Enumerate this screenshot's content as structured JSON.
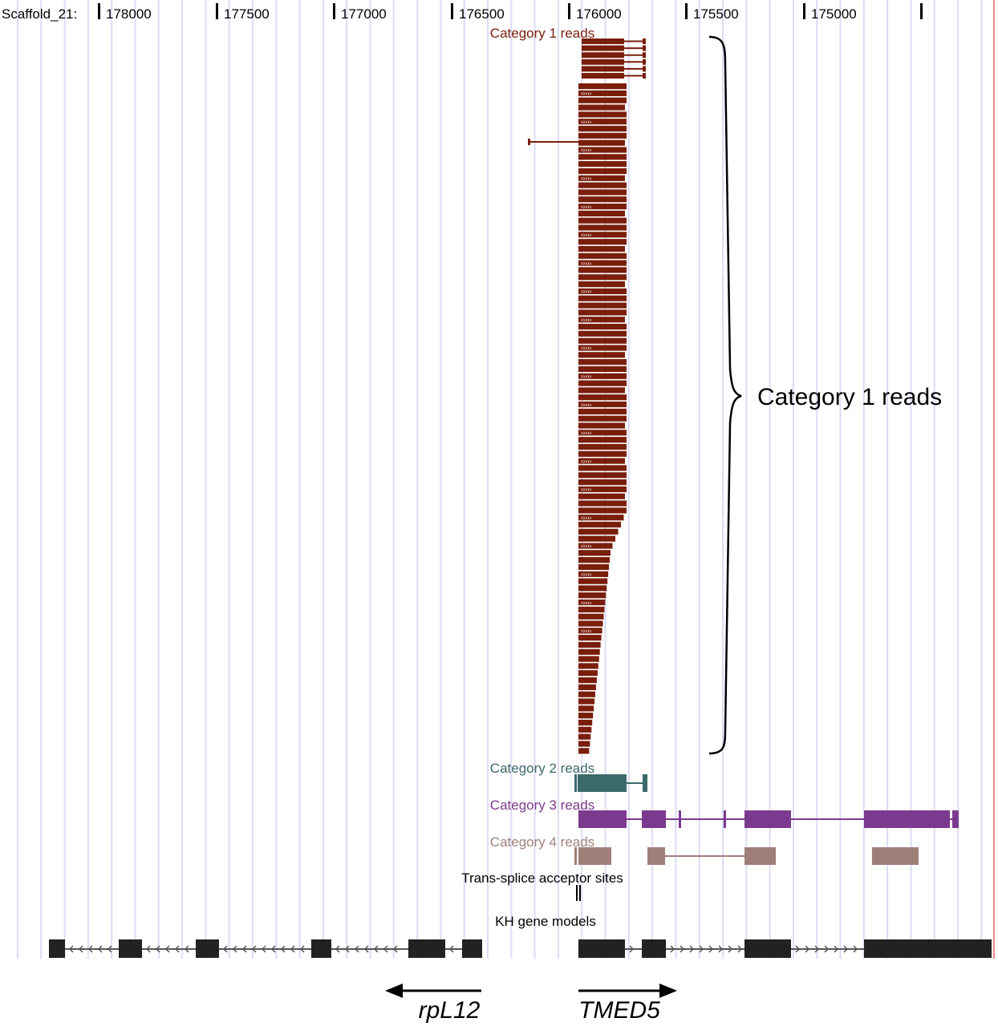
{
  "header": {
    "scaffold_label": "Scaffold_21:",
    "ticks": [
      "178000",
      "177500",
      "177000",
      "176500",
      "176000",
      "175500",
      "175000",
      ""
    ]
  },
  "colors": {
    "category1": "#7a1e0c",
    "category2": "#3b6a6a",
    "category3": "#7b3a8e",
    "category4": "#a07f78",
    "gene_models": "#222222",
    "grid": "#dcdcf5",
    "right_edge": "#f08a8a"
  },
  "tracks": {
    "category1": {
      "label": "Category 1 reads"
    },
    "category2": {
      "label": "Category 2 reads"
    },
    "category3": {
      "label": "Category 3 reads"
    },
    "category4": {
      "label": "Category 4 reads"
    },
    "trans_splice": {
      "label": "Trans-splice acceptor sites"
    },
    "kh_models": {
      "label": "KH gene models"
    }
  },
  "annotations": {
    "brace_label": "Category 1 reads"
  },
  "genes": [
    {
      "name": "rpL12",
      "direction": "left"
    },
    {
      "name": "TMED5",
      "direction": "right"
    }
  ]
}
